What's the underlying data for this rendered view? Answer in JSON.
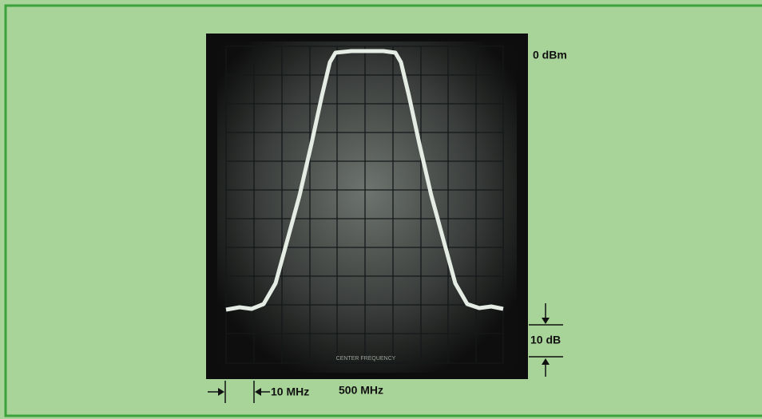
{
  "labels": {
    "reference_level": "0 dBm",
    "vertical_scale": "10 dB",
    "horizontal_scale": "10 MHz",
    "center": "500 MHz",
    "screen_marking": "CENTER FREQUENCY"
  }
}
